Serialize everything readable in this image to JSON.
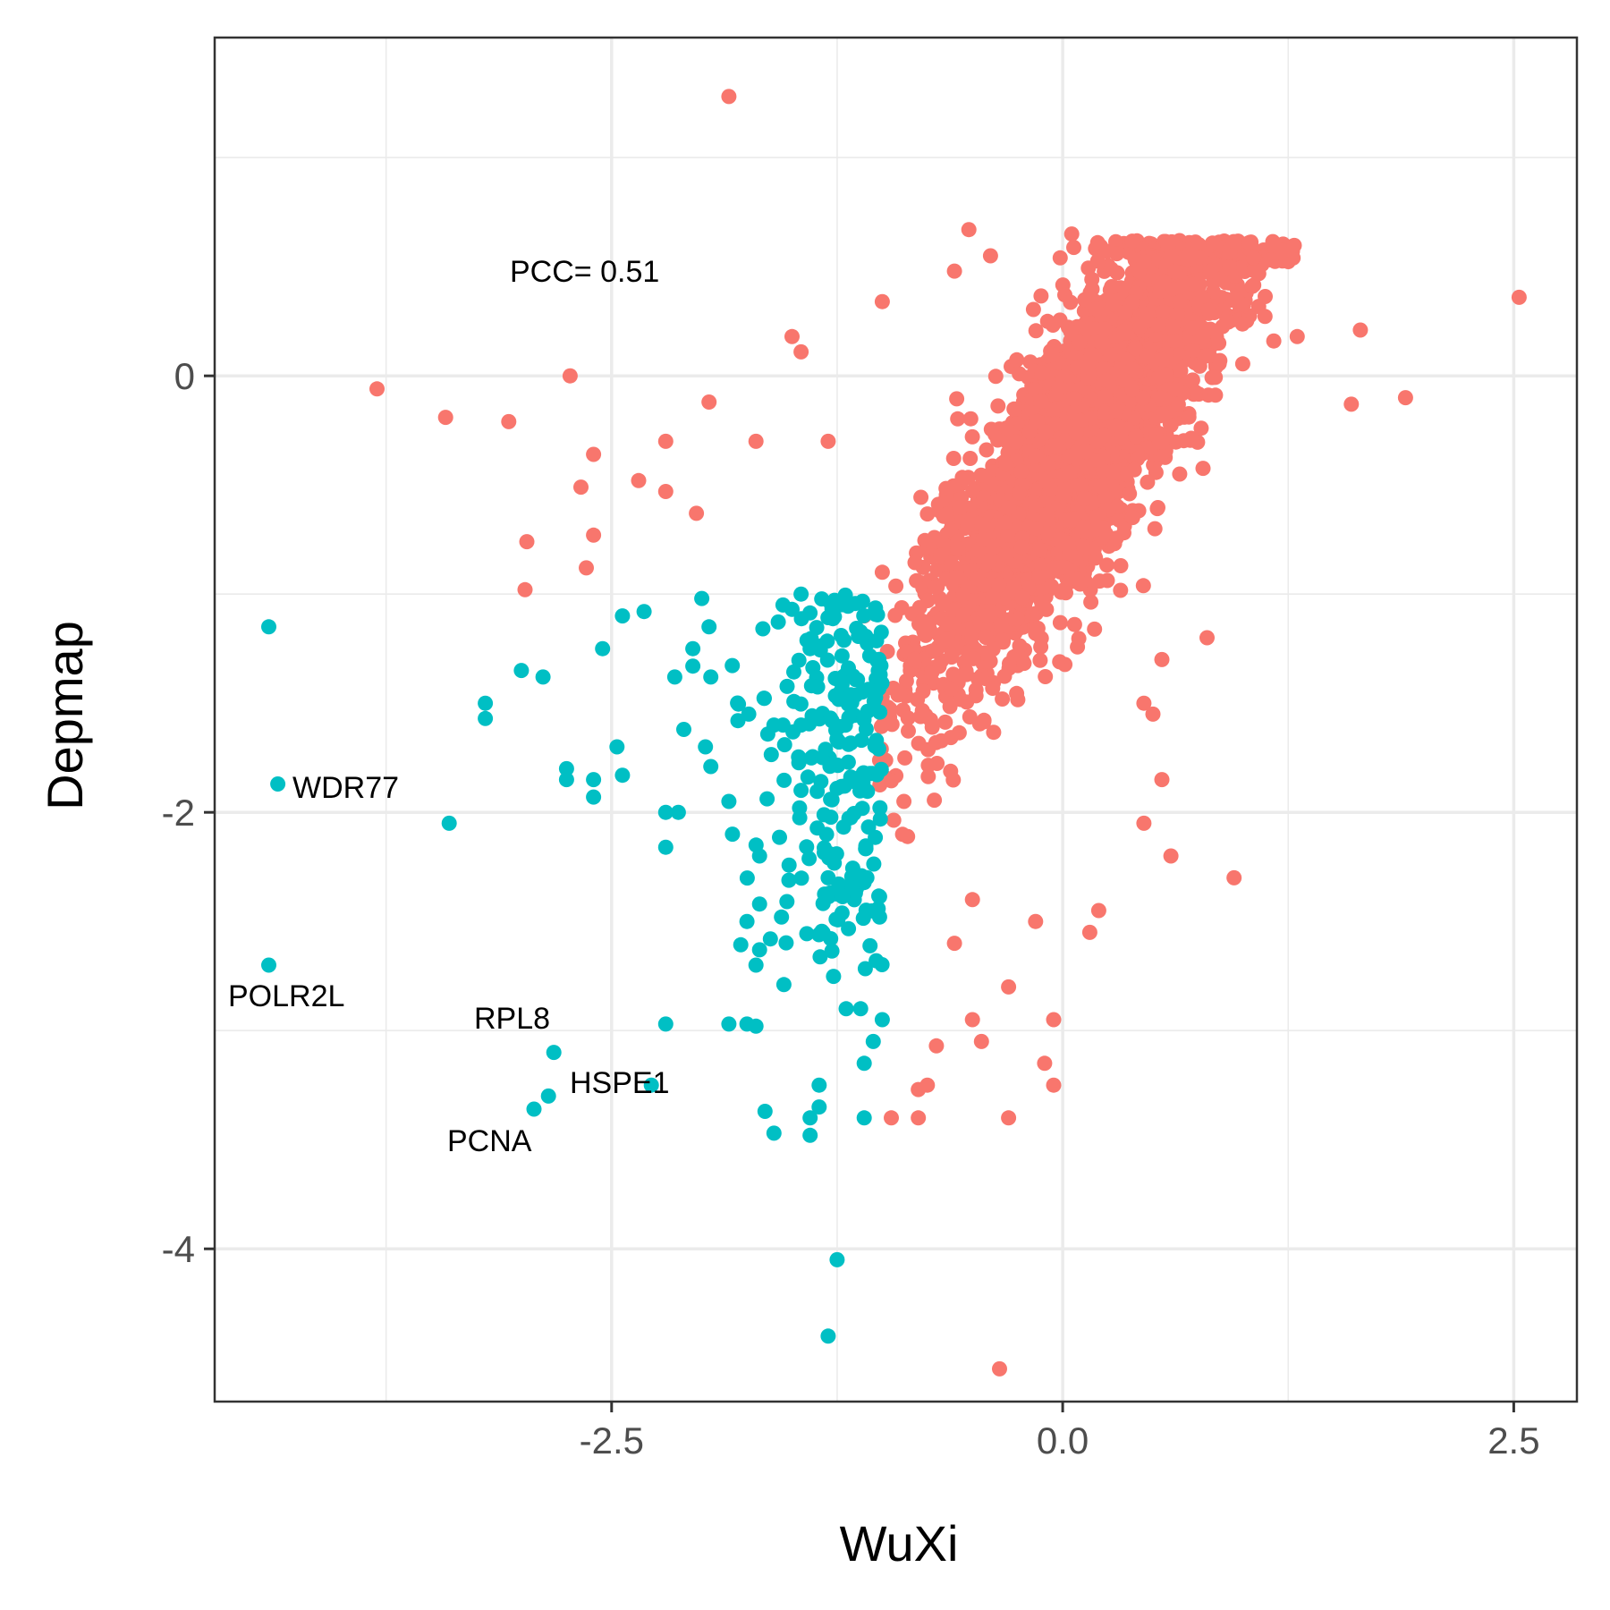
{
  "chart_data": {
    "type": "scatter",
    "xlabel": "WuXi",
    "ylabel": "Depmap",
    "xlim": [
      -4.7,
      2.85
    ],
    "ylim": [
      -4.7,
      1.55
    ],
    "x_ticks": [
      -2.5,
      0.0,
      2.5
    ],
    "x_tick_labels": [
      "-2.5",
      "0.0",
      "2.5"
    ],
    "y_ticks": [
      -4,
      -2,
      0
    ],
    "y_tick_labels": [
      "-4",
      "-2",
      "0"
    ],
    "grid": true,
    "legend": "none",
    "colors": {
      "red": "#F8766D",
      "cyan": "#00BFC4",
      "grid": "#ebebeb",
      "panel_border": "#333333"
    },
    "annotation": "PCC= 0.51",
    "series": [
      {
        "color": "#F8766D",
        "note": "dense cloud around (0.1, -0.3); explicit outliers listed, cloud generated by script",
        "points": [
          [
            -1.85,
            1.28
          ],
          [
            2.53,
            0.36
          ],
          [
            -3.8,
            -0.06
          ],
          [
            -2.73,
            0.0
          ],
          [
            -3.42,
            -0.19
          ],
          [
            -3.07,
            -0.21
          ],
          [
            -2.6,
            -0.36
          ],
          [
            -2.67,
            -0.51
          ],
          [
            -2.35,
            -0.48
          ],
          [
            -2.6,
            -0.73
          ],
          [
            -2.64,
            -0.88
          ],
          [
            -2.97,
            -0.76
          ],
          [
            -2.98,
            -0.98
          ],
          [
            -1.96,
            -0.12
          ],
          [
            -2.03,
            -0.63
          ],
          [
            -0.52,
            0.67
          ],
          [
            -0.4,
            0.55
          ],
          [
            -0.6,
            0.48
          ],
          [
            0.05,
            0.65
          ],
          [
            0.3,
            0.56
          ],
          [
            0.7,
            0.56
          ],
          [
            1.05,
            0.41
          ],
          [
            1.65,
            0.21
          ],
          [
            1.6,
            -0.13
          ],
          [
            1.9,
            -0.1
          ],
          [
            1.17,
            0.16
          ],
          [
            1.3,
            0.18
          ],
          [
            -1.0,
            0.34
          ],
          [
            -1.45,
            0.11
          ],
          [
            -1.5,
            0.18
          ],
          [
            -1.3,
            -0.3
          ],
          [
            -1.7,
            -0.3
          ],
          [
            -2.2,
            -0.3
          ],
          [
            -2.2,
            -0.53
          ],
          [
            -1.1,
            -1.1
          ],
          [
            -1.0,
            -0.9
          ],
          [
            -0.15,
            -1.18
          ],
          [
            0.55,
            -1.3
          ],
          [
            0.8,
            -1.2
          ],
          [
            0.55,
            -1.85
          ],
          [
            0.45,
            -2.05
          ],
          [
            0.95,
            -2.3
          ],
          [
            0.15,
            -2.55
          ],
          [
            0.2,
            -2.45
          ],
          [
            -0.15,
            -2.5
          ],
          [
            -0.05,
            -2.95
          ],
          [
            -0.1,
            -3.15
          ],
          [
            -0.05,
            -3.25
          ],
          [
            -0.3,
            -3.4
          ],
          [
            -0.35,
            -4.55
          ],
          [
            -0.8,
            -3.4
          ],
          [
            -0.8,
            -3.27
          ],
          [
            -0.75,
            -3.25
          ],
          [
            -0.7,
            -3.07
          ],
          [
            -0.95,
            -3.4
          ],
          [
            0.5,
            -1.55
          ],
          [
            0.6,
            -2.2
          ],
          [
            0.45,
            -1.5
          ],
          [
            -0.5,
            -2.4
          ],
          [
            -0.6,
            -2.6
          ],
          [
            -0.3,
            -2.8
          ],
          [
            -0.45,
            -3.05
          ],
          [
            -0.5,
            -2.95
          ]
        ],
        "cloud": {
          "n": 3000,
          "center": [
            0.1,
            -0.3
          ],
          "seed": 7
        }
      },
      {
        "color": "#00BFC4",
        "note": "points with Depmap <= -1 and WuXi left of the red boundary",
        "points": [
          [
            -4.4,
            -1.15
          ],
          [
            -4.35,
            -1.87
          ],
          [
            -3.4,
            -2.05
          ],
          [
            -4.4,
            -2.7
          ],
          [
            -2.82,
            -3.1
          ],
          [
            -2.28,
            -3.25
          ],
          [
            -2.85,
            -3.3
          ],
          [
            -2.93,
            -3.36
          ],
          [
            -2.2,
            -2.97
          ],
          [
            -3.0,
            -1.35
          ],
          [
            -3.2,
            -1.5
          ],
          [
            -3.2,
            -1.57
          ],
          [
            -2.88,
            -1.38
          ],
          [
            -2.75,
            -1.85
          ],
          [
            -2.75,
            -1.8
          ],
          [
            -2.6,
            -1.85
          ],
          [
            -2.6,
            -1.93
          ],
          [
            -2.44,
            -1.1
          ],
          [
            -2.32,
            -1.08
          ],
          [
            -2.55,
            -1.25
          ],
          [
            -2.47,
            -1.7
          ],
          [
            -2.44,
            -1.83
          ],
          [
            -2.2,
            -2.0
          ],
          [
            -2.2,
            -2.16
          ],
          [
            -2.15,
            -1.38
          ],
          [
            -2.05,
            -1.25
          ],
          [
            -2.05,
            -1.33
          ],
          [
            -1.95,
            -1.38
          ],
          [
            -2.0,
            -1.02
          ],
          [
            -1.96,
            -1.15
          ],
          [
            -1.95,
            -1.79
          ],
          [
            -1.98,
            -1.7
          ],
          [
            -2.13,
            -2.0
          ],
          [
            -2.1,
            -1.62
          ],
          [
            -1.8,
            -1.58
          ],
          [
            -1.74,
            -1.55
          ],
          [
            -1.85,
            -1.95
          ],
          [
            -1.83,
            -2.1
          ],
          [
            -1.68,
            -2.2
          ],
          [
            -1.68,
            -2.42
          ],
          [
            -1.75,
            -2.5
          ],
          [
            -1.7,
            -2.7
          ],
          [
            -1.68,
            -2.63
          ],
          [
            -1.62,
            -2.58
          ],
          [
            -1.65,
            -3.37
          ],
          [
            -1.6,
            -3.47
          ],
          [
            -1.4,
            -3.4
          ],
          [
            -1.4,
            -3.48
          ],
          [
            -1.35,
            -3.35
          ],
          [
            -1.25,
            -4.05
          ],
          [
            -1.3,
            -4.4
          ],
          [
            -1.35,
            -3.25
          ],
          [
            -1.3,
            -2.3
          ],
          [
            -1.2,
            -2.9
          ],
          [
            -1.12,
            -2.9
          ],
          [
            -1.1,
            -3.15
          ],
          [
            -1.05,
            -3.05
          ],
          [
            -1.0,
            -2.95
          ],
          [
            -1.1,
            -3.4
          ],
          [
            -1.7,
            -2.98
          ],
          [
            -1.85,
            -2.97
          ],
          [
            -1.75,
            -2.97
          ],
          [
            -1.6,
            -1.6
          ],
          [
            -1.55,
            -1.6
          ],
          [
            -1.45,
            -1.6
          ],
          [
            -1.5,
            -1.07
          ],
          [
            -1.45,
            -1.0
          ],
          [
            -1.55,
            -1.05
          ],
          [
            -1.4,
            -1.25
          ]
        ],
        "cloud": {
          "n": 230,
          "x_range": [
            -1.9,
            -1.0
          ],
          "y_range": [
            -2.8,
            -1.0
          ],
          "seed": 11
        }
      }
    ]
  }
}
